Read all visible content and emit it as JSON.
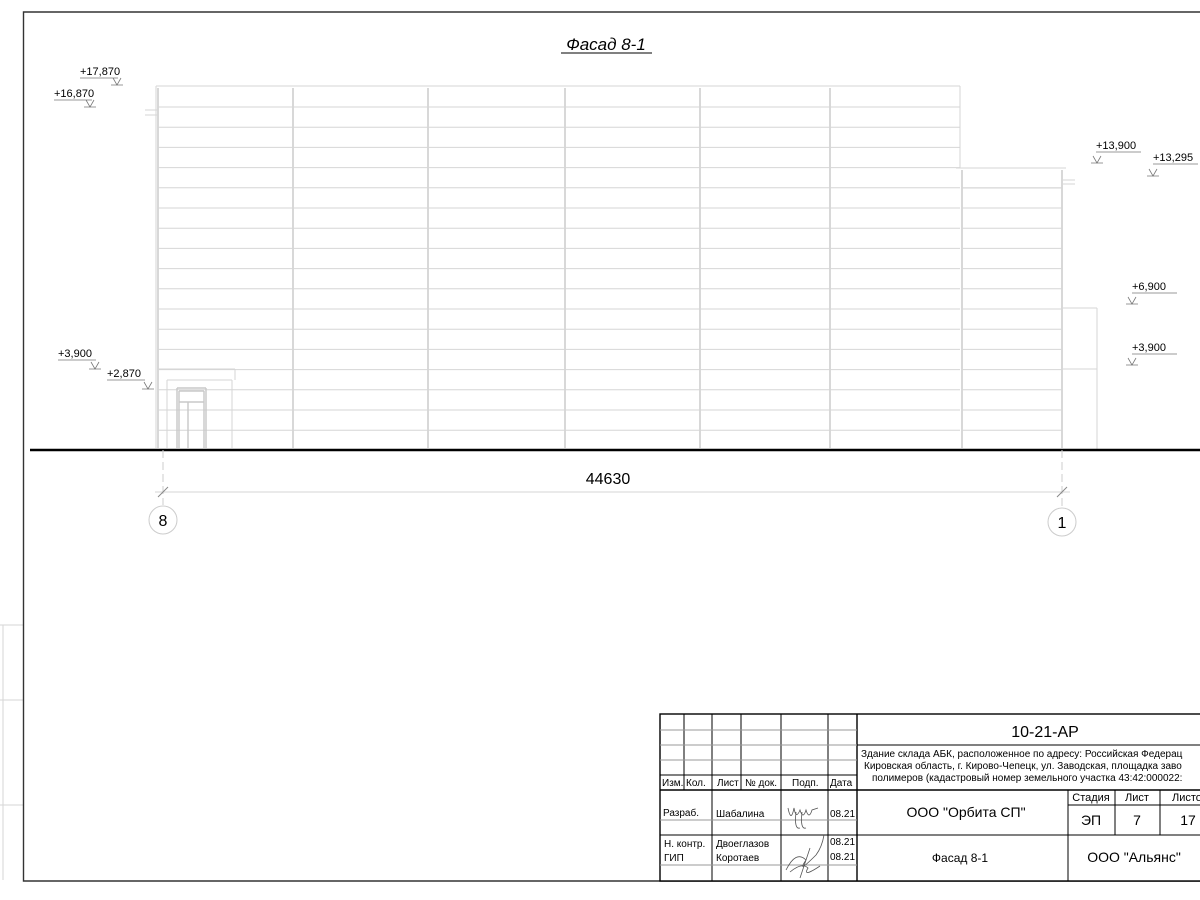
{
  "drawing": {
    "title": "Фасад 8-1",
    "overall_dimension": "44630",
    "axes": [
      "8",
      "1"
    ],
    "elevations_left": [
      "+17,870",
      "+16,870",
      "+3,900",
      "+2,870"
    ],
    "elevations_right": [
      "+13,900",
      "+13,295",
      "+6,900",
      "+3,900"
    ]
  },
  "title_block": {
    "code": "10-21-АР",
    "description": [
      "Здание склада АБК, расположенное по адресу: Российская Федерац",
      "Кировская область, г. Кирово-Чепецк, ул. Заводская, площадка заво",
      "полимеров (кадастровый номер земельного участка 43:42:000022:"
    ],
    "headers": [
      "Изм.",
      "Кол.",
      "Лист",
      "№ док.",
      "Подп.",
      "Дата"
    ],
    "roles": [
      {
        "role": "Разраб.",
        "name": "Шабалина",
        "date": "08.21"
      },
      {
        "role": "Н. контр.",
        "name": "Двоеглазов",
        "date": "08.21"
      },
      {
        "role": "ГИП",
        "name": "Коротаев",
        "date": "08.21"
      }
    ],
    "designer_org": "ООО \"Орбита СП\"",
    "sheet_name": "Фасад 8-1",
    "client_org": "ООО \"Альянс\"",
    "stage_label": "Стадия",
    "sheet_label": "Лист",
    "sheets_label": "Листо",
    "stage": "ЭП",
    "sheet": "7",
    "sheets": "17"
  }
}
